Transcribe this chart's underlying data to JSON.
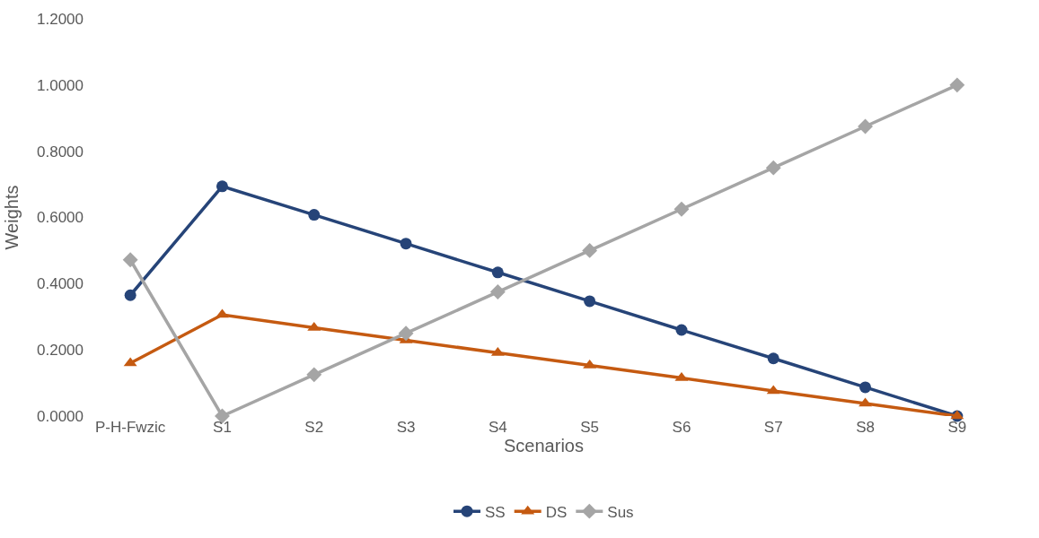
{
  "chart_data": {
    "type": "line",
    "xlabel": "Scenarios",
    "ylabel": "Weights",
    "categories": [
      "P-H-Fwzic",
      "S1",
      "S2",
      "S3",
      "S4",
      "S5",
      "S6",
      "S7",
      "S8",
      "S9"
    ],
    "series": [
      {
        "name": "SS",
        "color": "#264478",
        "marker": "circle",
        "values": [
          0.365,
          0.694,
          0.608,
          0.521,
          0.434,
          0.347,
          0.26,
          0.174,
          0.087,
          0.0
        ]
      },
      {
        "name": "DS",
        "color": "#c55a11",
        "marker": "triangle",
        "values": [
          0.16,
          0.306,
          0.267,
          0.229,
          0.191,
          0.153,
          0.115,
          0.076,
          0.038,
          0.0
        ]
      },
      {
        "name": "Sus",
        "color": "#a5a5a5",
        "marker": "diamond",
        "values": [
          0.472,
          0.0,
          0.125,
          0.25,
          0.375,
          0.5,
          0.625,
          0.75,
          0.875,
          1.0
        ]
      }
    ],
    "ylim": [
      0,
      1.2
    ],
    "yticks": [
      {
        "value": 0,
        "label": "0.0000"
      },
      {
        "value": 0.2,
        "label": "0.2000"
      },
      {
        "value": 0.4,
        "label": "0.4000"
      },
      {
        "value": 0.6,
        "label": "0.6000"
      },
      {
        "value": 0.8,
        "label": "0.8000"
      },
      {
        "value": 1.0,
        "label": "1.0000"
      },
      {
        "value": 1.2,
        "label": "1.2000"
      }
    ],
    "grid": false,
    "legend": "bottom",
    "line_style": "solid"
  }
}
